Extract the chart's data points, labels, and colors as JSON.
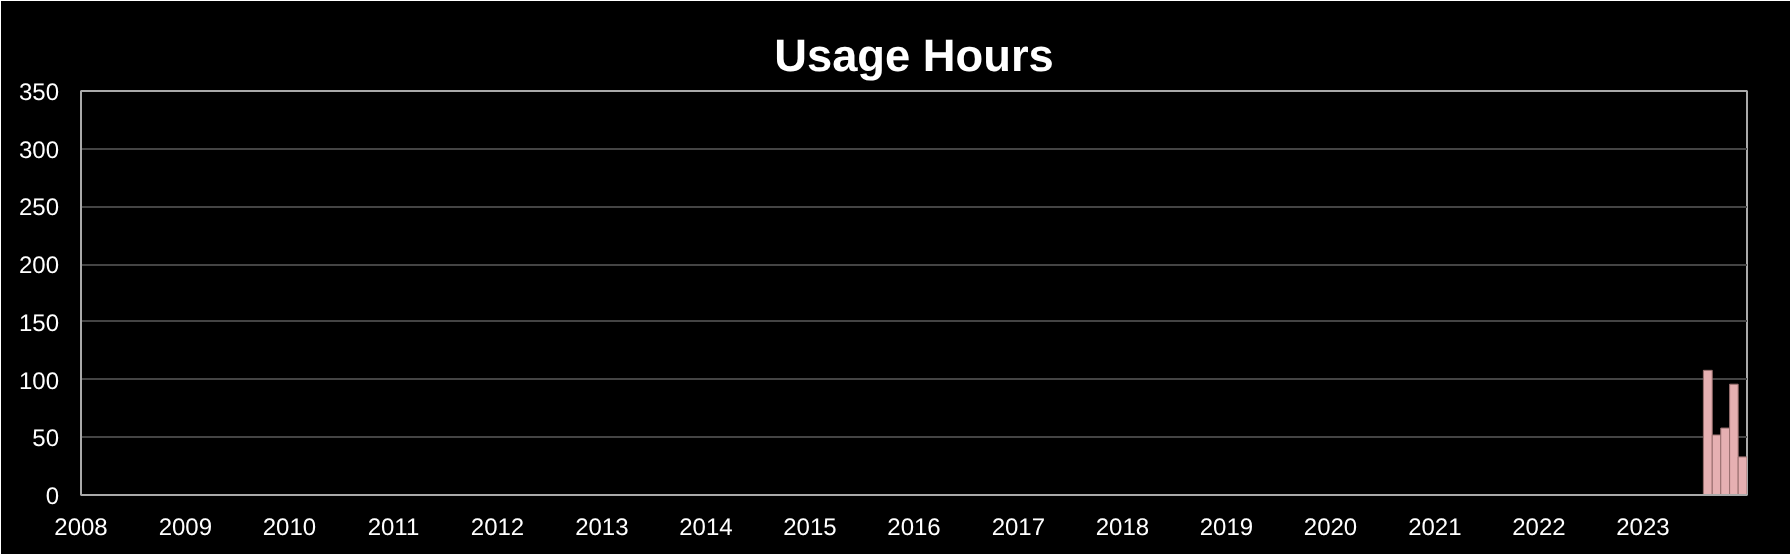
{
  "chart_data": {
    "type": "bar",
    "title": "Usage Hours",
    "x": [
      "2023-08",
      "2023-09",
      "2023-10",
      "2023-11",
      "2023-12"
    ],
    "values": [
      108,
      52,
      58,
      96,
      33
    ],
    "color": "#e6b0b2",
    "xlim": [
      "2008-01",
      "2024-01"
    ],
    "xticks": [
      "2008",
      "2009",
      "2010",
      "2011",
      "2012",
      "2013",
      "2014",
      "2015",
      "2016",
      "2017",
      "2018",
      "2019",
      "2020",
      "2021",
      "2022",
      "2023"
    ],
    "ylim": [
      0,
      350
    ],
    "yticks": [
      0,
      50,
      100,
      150,
      200,
      250,
      300,
      350
    ],
    "grid": "y"
  }
}
